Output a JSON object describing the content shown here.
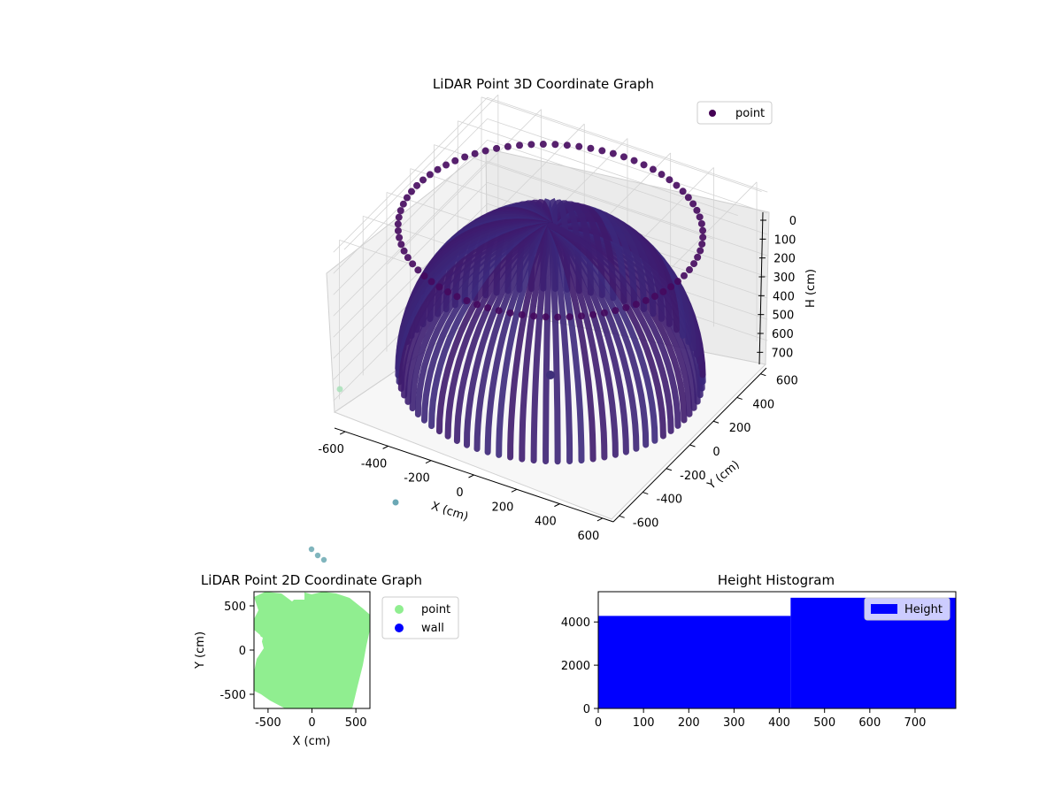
{
  "figure": {
    "charts": 3
  },
  "chart_data": [
    {
      "type": "scatter",
      "projection": "3d",
      "title": "LiDAR Point 3D Coordinate Graph",
      "xlabel": "X (cm)",
      "ylabel": "Y (cm)",
      "zlabel": "H (cm)",
      "xticks": [
        -600,
        -400,
        -200,
        0,
        200,
        400,
        600
      ],
      "yticks": [
        -600,
        -400,
        -200,
        0,
        200,
        400,
        600
      ],
      "zticks": [
        0,
        100,
        200,
        300,
        400,
        500,
        600,
        700
      ],
      "xlim": [
        -650,
        650
      ],
      "ylim": [
        -650,
        650
      ],
      "zlim": [
        750,
        0
      ],
      "zaxis_inverted": true,
      "grid": true,
      "legend": {
        "placement": "top-right",
        "entries": [
          {
            "label": "point",
            "color": "#440154"
          }
        ]
      },
      "colormap": "viridis",
      "series": [
        {
          "name": "point",
          "description_shape": "hemispherical bowl of scan arcs",
          "radius": 620,
          "max_height": 720
        }
      ]
    },
    {
      "type": "scatter",
      "title": "LiDAR Point 2D Coordinate Graph",
      "xlabel": "X (cm)",
      "ylabel": "Y (cm)",
      "xticks": [
        -500,
        0,
        500
      ],
      "yticks": [
        500,
        0,
        -500
      ],
      "xlim": [
        -660,
        660
      ],
      "ylim": [
        -660,
        660
      ],
      "legend": {
        "placement": "outside-right",
        "entries": [
          {
            "label": "point",
            "color": "#90ee90"
          },
          {
            "label": "wall",
            "color": "#0000ff"
          }
        ]
      },
      "series": [
        {
          "name": "point",
          "color": "#90ee90"
        },
        {
          "name": "wall",
          "color": "#0000ff"
        }
      ]
    },
    {
      "type": "bar",
      "subtype": "histogram",
      "title": "Height Histogram",
      "xlabel": "",
      "ylabel": "",
      "xticks": [
        0,
        100,
        200,
        300,
        400,
        500,
        600,
        700
      ],
      "yticks": [
        0,
        2000,
        4000
      ],
      "xlim": [
        0,
        790
      ],
      "ylim": [
        0,
        5400
      ],
      "bins": [
        {
          "x0": 0,
          "x1": 425,
          "count": 4280
        },
        {
          "x0": 425,
          "x1": 790,
          "count": 5120
        }
      ],
      "color": "#0000ff",
      "legend": {
        "placement": "top-right",
        "entries": [
          {
            "label": "Height",
            "color": "#0000ff"
          }
        ]
      }
    }
  ]
}
